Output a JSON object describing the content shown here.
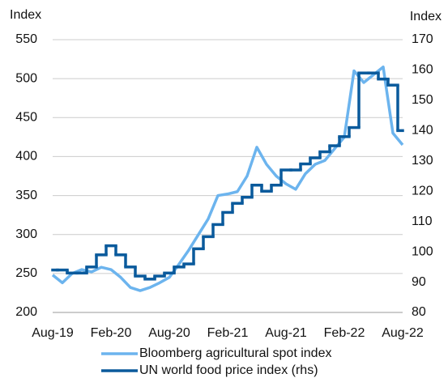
{
  "chart_data": {
    "type": "line",
    "y_label": "Index",
    "y2_label": "Index",
    "categories": [
      "Aug-19",
      null,
      null,
      null,
      null,
      null,
      "Feb-20",
      null,
      null,
      null,
      null,
      null,
      "Aug-20",
      null,
      null,
      null,
      null,
      null,
      "Feb-21",
      null,
      null,
      null,
      null,
      null,
      "Aug-21",
      null,
      null,
      null,
      null,
      null,
      "Feb-22",
      null,
      null,
      null,
      null,
      null,
      "Aug-22"
    ],
    "series": [
      {
        "name": "Bloomberg agricultural spot index",
        "color": "#6cb4ee",
        "axis": "y",
        "values": [
          248,
          238,
          250,
          255,
          252,
          258,
          255,
          245,
          232,
          228,
          232,
          238,
          245,
          262,
          280,
          300,
          320,
          350,
          352,
          355,
          375,
          412,
          390,
          375,
          365,
          358,
          378,
          390,
          395,
          410,
          425,
          510,
          495,
          505,
          515,
          430,
          415
        ]
      },
      {
        "name": "UN world food price index (rhs)",
        "color": "#0a5a9c",
        "axis": "y2",
        "step": true,
        "values": [
          94,
          94,
          93,
          93,
          95,
          99,
          102,
          99,
          95,
          92,
          91,
          92,
          93,
          95,
          96,
          101,
          105,
          109,
          113,
          116,
          118,
          122,
          120,
          122,
          127,
          127,
          129,
          131,
          133,
          135,
          138,
          141,
          159,
          159,
          157,
          155,
          140
        ]
      }
    ],
    "ylim": [
      200,
      550
    ],
    "yticks": [
      200,
      250,
      300,
      350,
      400,
      450,
      500,
      550
    ],
    "y2lim": [
      80,
      170
    ],
    "y2ticks": [
      80,
      90,
      100,
      110,
      120,
      130,
      140,
      150,
      160,
      170
    ],
    "grid": true,
    "legend": "bottom"
  }
}
